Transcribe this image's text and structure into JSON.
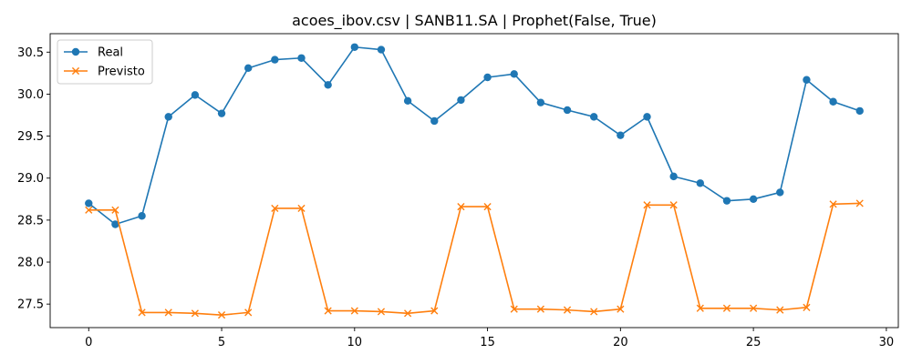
{
  "chart_data": {
    "type": "line",
    "title": "acoes_ibov.csv | SANB11.SA | Prophet(False, True)",
    "xlabel": "",
    "ylabel": "",
    "x": [
      0,
      1,
      2,
      3,
      4,
      5,
      6,
      7,
      8,
      9,
      10,
      11,
      12,
      13,
      14,
      15,
      16,
      17,
      18,
      19,
      20,
      21,
      22,
      23,
      24,
      25,
      26,
      27,
      28,
      29
    ],
    "xlim": [
      -1.45,
      30.45
    ],
    "ylim": [
      27.22,
      30.72
    ],
    "x_ticks": [
      0,
      5,
      10,
      15,
      20,
      25,
      30
    ],
    "x_tick_labels": [
      "0",
      "5",
      "10",
      "15",
      "20",
      "25",
      "30"
    ],
    "y_ticks": [
      27.5,
      28.0,
      28.5,
      29.0,
      29.5,
      30.0,
      30.5
    ],
    "y_tick_labels": [
      "27.5",
      "28.0",
      "28.5",
      "29.0",
      "29.5",
      "30.0",
      "30.5"
    ],
    "grid": false,
    "legend_position": "top-left",
    "series": [
      {
        "name": "Real",
        "color": "#1f77b4",
        "marker": "circle",
        "values": [
          28.7,
          28.45,
          28.55,
          29.73,
          29.99,
          29.77,
          30.31,
          30.41,
          30.43,
          30.11,
          30.56,
          30.53,
          29.92,
          29.68,
          29.93,
          30.2,
          30.24,
          29.9,
          29.81,
          29.73,
          29.51,
          29.73,
          29.02,
          28.94,
          28.73,
          28.75,
          28.83,
          30.17,
          29.91,
          29.8
        ]
      },
      {
        "name": "Previsto",
        "color": "#ff7f0e",
        "marker": "x",
        "values": [
          28.62,
          28.62,
          27.4,
          27.4,
          27.39,
          27.37,
          27.4,
          28.64,
          28.64,
          27.42,
          27.42,
          27.41,
          27.39,
          27.42,
          28.66,
          28.66,
          27.44,
          27.44,
          27.43,
          27.41,
          27.44,
          28.68,
          28.68,
          27.45,
          27.45,
          27.45,
          27.43,
          27.46,
          28.69,
          28.7
        ]
      }
    ]
  }
}
